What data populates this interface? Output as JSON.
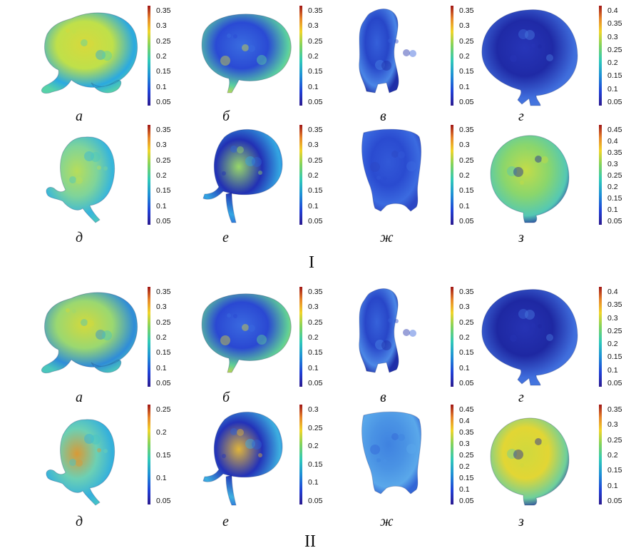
{
  "groups": [
    {
      "label": "I",
      "panels": [
        {
          "label": "а",
          "colorbar": [
            "0.35",
            "0.3",
            "0.25",
            "0.2",
            "0.15",
            "0.1",
            "0.05"
          ],
          "colors": [
            "#bfe04a",
            "#d7d93c",
            "#56d2a8",
            "#2ba9e0"
          ]
        },
        {
          "label": "б",
          "colorbar": [
            "0.35",
            "0.3",
            "0.25",
            "0.2",
            "0.15",
            "0.1",
            "0.05"
          ],
          "colors": [
            "#2a4ad4",
            "#3a6de0",
            "#d7d93c",
            "#5ad0a0"
          ]
        },
        {
          "label": "в",
          "colorbar": [
            "0.35",
            "0.3",
            "0.25",
            "0.2",
            "0.15",
            "0.1",
            "0.05"
          ],
          "colors": [
            "#2746c8",
            "#3560da",
            "#1f2fa8",
            "#4a86e6"
          ]
        },
        {
          "label": "г",
          "colorbar": [
            "0.4",
            "0.35",
            "0.3",
            "0.25",
            "0.2",
            "0.15",
            "0.1",
            "0.05"
          ],
          "colors": [
            "#1f2aa6",
            "#2735b8",
            "#4a7de0",
            "#3f6ddc"
          ]
        },
        {
          "label": "д",
          "colorbar": [
            "0.35",
            "0.3",
            "0.25",
            "0.2",
            "0.15",
            "0.1",
            "0.05"
          ],
          "colors": [
            "#7fd49a",
            "#b7dd5a",
            "#49c8c0",
            "#36b5dc"
          ]
        },
        {
          "label": "е",
          "colorbar": [
            "0.35",
            "0.3",
            "0.25",
            "0.2",
            "0.15",
            "0.1",
            "0.05"
          ],
          "colors": [
            "#2230b4",
            "#98d868",
            "#2c64d8",
            "#33a6e2"
          ]
        },
        {
          "label": "ж",
          "colorbar": [
            "0.35",
            "0.3",
            "0.25",
            "0.2",
            "0.15",
            "0.1",
            "0.05"
          ],
          "colors": [
            "#2a4bd0",
            "#3259d8",
            "#2c47c4",
            "#3b6be0"
          ]
        },
        {
          "label": "з",
          "colorbar": [
            "0.45",
            "0.4",
            "0.35",
            "0.3",
            "0.25",
            "0.2",
            "0.15",
            "0.1",
            "0.05"
          ],
          "colors": [
            "#8ad66c",
            "#c4dc48",
            "#1e239a",
            "#54c8b4"
          ]
        }
      ]
    },
    {
      "label": "II",
      "panels": [
        {
          "label": "а",
          "colorbar": [
            "0.35",
            "0.3",
            "0.25",
            "0.2",
            "0.15",
            "0.1",
            "0.05"
          ],
          "colors": [
            "#9bd870",
            "#d3d93c",
            "#4ac6bc",
            "#2f8cd8"
          ]
        },
        {
          "label": "б",
          "colorbar": [
            "0.35",
            "0.3",
            "0.25",
            "0.2",
            "0.15",
            "0.1",
            "0.05"
          ],
          "colors": [
            "#2a48d2",
            "#3a6ae0",
            "#dcd538",
            "#60d096"
          ]
        },
        {
          "label": "в",
          "colorbar": [
            "0.35",
            "0.3",
            "0.25",
            "0.2",
            "0.15",
            "0.1",
            "0.05"
          ],
          "colors": [
            "#2846c8",
            "#3662da",
            "#1f2ea8",
            "#4c88e6"
          ]
        },
        {
          "label": "г",
          "colorbar": [
            "0.4",
            "0.35",
            "0.3",
            "0.25",
            "0.2",
            "0.15",
            "0.1",
            "0.05"
          ],
          "colors": [
            "#1e28a2",
            "#2633b4",
            "#4a7de0",
            "#3f6ddc"
          ]
        },
        {
          "label": "д",
          "colorbar": [
            "0.25",
            "0.2",
            "0.15",
            "0.1",
            "0.05"
          ],
          "colors": [
            "#6cd0b4",
            "#d99a36",
            "#44c4c8",
            "#34b0dc"
          ]
        },
        {
          "label": "е",
          "colorbar": [
            "0.3",
            "0.25",
            "0.2",
            "0.15",
            "0.1",
            "0.05"
          ],
          "colors": [
            "#2332b8",
            "#e0b53a",
            "#2c64d8",
            "#3db0e0"
          ]
        },
        {
          "label": "ж",
          "colorbar": [
            "0.45",
            "0.4",
            "0.35",
            "0.3",
            "0.25",
            "0.2",
            "0.15",
            "0.1",
            "0.05"
          ],
          "colors": [
            "#4a93e4",
            "#3f82e0",
            "#3266d6",
            "#5aa8ea"
          ]
        },
        {
          "label": "з",
          "colorbar": [
            "0.35",
            "0.3",
            "0.25",
            "0.2",
            "0.15",
            "0.1",
            "0.05"
          ],
          "colors": [
            "#e2d634",
            "#cfd93e",
            "#1f239c",
            "#6ecf9c"
          ]
        }
      ]
    }
  ]
}
